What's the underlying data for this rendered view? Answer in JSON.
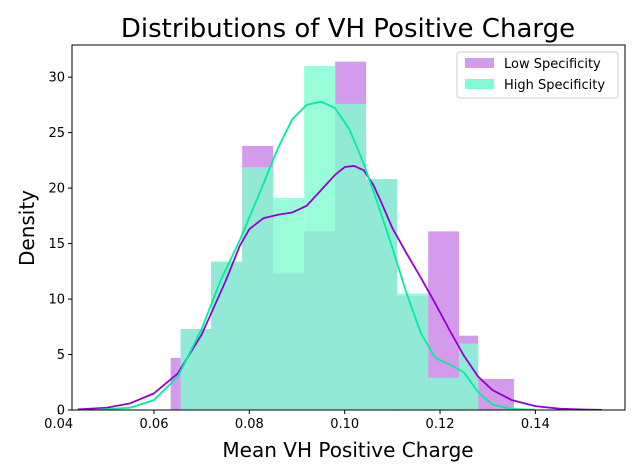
{
  "chart_data": {
    "type": "histogram",
    "title": "Distributions of VH Positive Charge",
    "xlabel": "Mean VH Positive Charge",
    "ylabel": "Density",
    "xlim": [
      0.0428,
      0.1588
    ],
    "ylim": [
      0,
      32.9
    ],
    "xticks": [
      "0.04",
      "0.06",
      "0.08",
      "0.10",
      "0.12",
      "0.14"
    ],
    "xtick_values": [
      0.04,
      0.06,
      0.08,
      0.1,
      0.12,
      0.14
    ],
    "yticks": [
      "0",
      "5",
      "10",
      "15",
      "20",
      "25",
      "30"
    ],
    "ytick_values": [
      0,
      5,
      10,
      15,
      20,
      25,
      30
    ],
    "legend_position": "top-right",
    "grid": false,
    "series": [
      {
        "name": "Low Specificity",
        "bar_color": "#d49aec",
        "line_color": "#9400d3",
        "bins": [
          {
            "x0": 0.0635,
            "x1": 0.0656,
            "value": 4.7
          },
          {
            "x0": 0.0656,
            "x1": 0.072,
            "value": 7.3
          },
          {
            "x0": 0.072,
            "x1": 0.0785,
            "value": 13.3
          },
          {
            "x0": 0.0785,
            "x1": 0.085,
            "value": 23.8
          },
          {
            "x0": 0.085,
            "x1": 0.0915,
            "value": 12.3
          },
          {
            "x0": 0.0915,
            "x1": 0.098,
            "value": 16.1
          },
          {
            "x0": 0.098,
            "x1": 0.1045,
            "value": 31.4
          },
          {
            "x0": 0.1045,
            "x1": 0.111,
            "value": 20.8
          },
          {
            "x0": 0.111,
            "x1": 0.1175,
            "value": 10.3
          },
          {
            "x0": 0.1175,
            "x1": 0.124,
            "value": 16.1
          },
          {
            "x0": 0.124,
            "x1": 0.128,
            "value": 6.7
          },
          {
            "x0": 0.128,
            "x1": 0.1355,
            "value": 2.8
          }
        ],
        "kde": [
          [
            0.044,
            0.05
          ],
          [
            0.05,
            0.2
          ],
          [
            0.055,
            0.6
          ],
          [
            0.06,
            1.5
          ],
          [
            0.065,
            3.3
          ],
          [
            0.07,
            6.8
          ],
          [
            0.075,
            11.6
          ],
          [
            0.078,
            14.8
          ],
          [
            0.08,
            16.3
          ],
          [
            0.083,
            17.3
          ],
          [
            0.086,
            17.6
          ],
          [
            0.089,
            17.8
          ],
          [
            0.092,
            18.4
          ],
          [
            0.095,
            19.8
          ],
          [
            0.098,
            21.2
          ],
          [
            0.1,
            21.9
          ],
          [
            0.102,
            22.0
          ],
          [
            0.104,
            21.6
          ],
          [
            0.106,
            20.3
          ],
          [
            0.108,
            18.4
          ],
          [
            0.11,
            16.4
          ],
          [
            0.113,
            14.1
          ],
          [
            0.116,
            11.9
          ],
          [
            0.119,
            9.6
          ],
          [
            0.122,
            7.2
          ],
          [
            0.125,
            4.9
          ],
          [
            0.128,
            3.0
          ],
          [
            0.131,
            1.8
          ],
          [
            0.135,
            0.9
          ],
          [
            0.14,
            0.35
          ],
          [
            0.145,
            0.12
          ],
          [
            0.15,
            0.04
          ],
          [
            0.154,
            0.01
          ]
        ]
      },
      {
        "name": "High Specificity",
        "bar_color": "#7ffcd1",
        "line_color": "#00ee9c",
        "bins": [
          {
            "x0": 0.0656,
            "x1": 0.072,
            "value": 7.3
          },
          {
            "x0": 0.072,
            "x1": 0.0785,
            "value": 13.4
          },
          {
            "x0": 0.0785,
            "x1": 0.085,
            "value": 21.9
          },
          {
            "x0": 0.085,
            "x1": 0.0915,
            "value": 19.1
          },
          {
            "x0": 0.0915,
            "x1": 0.098,
            "value": 31.0
          },
          {
            "x0": 0.098,
            "x1": 0.1045,
            "value": 27.6
          },
          {
            "x0": 0.1045,
            "x1": 0.111,
            "value": 20.8
          },
          {
            "x0": 0.111,
            "x1": 0.1175,
            "value": 10.5
          },
          {
            "x0": 0.1175,
            "x1": 0.124,
            "value": 2.9
          },
          {
            "x0": 0.124,
            "x1": 0.128,
            "value": 6.0
          }
        ],
        "kde": [
          [
            0.048,
            0.02
          ],
          [
            0.055,
            0.2
          ],
          [
            0.06,
            0.9
          ],
          [
            0.065,
            3.0
          ],
          [
            0.07,
            7.3
          ],
          [
            0.074,
            11.7
          ],
          [
            0.078,
            15.3
          ],
          [
            0.082,
            19.4
          ],
          [
            0.086,
            23.6
          ],
          [
            0.089,
            26.2
          ],
          [
            0.092,
            27.5
          ],
          [
            0.095,
            27.8
          ],
          [
            0.098,
            27.2
          ],
          [
            0.101,
            25.3
          ],
          [
            0.104,
            22.2
          ],
          [
            0.107,
            18.5
          ],
          [
            0.11,
            14.6
          ],
          [
            0.113,
            10.5
          ],
          [
            0.116,
            6.9
          ],
          [
            0.119,
            4.7
          ],
          [
            0.122,
            4.1
          ],
          [
            0.125,
            3.4
          ],
          [
            0.128,
            1.6
          ],
          [
            0.131,
            0.5
          ],
          [
            0.135,
            0.1
          ],
          [
            0.14,
            0.02
          ]
        ]
      }
    ]
  }
}
